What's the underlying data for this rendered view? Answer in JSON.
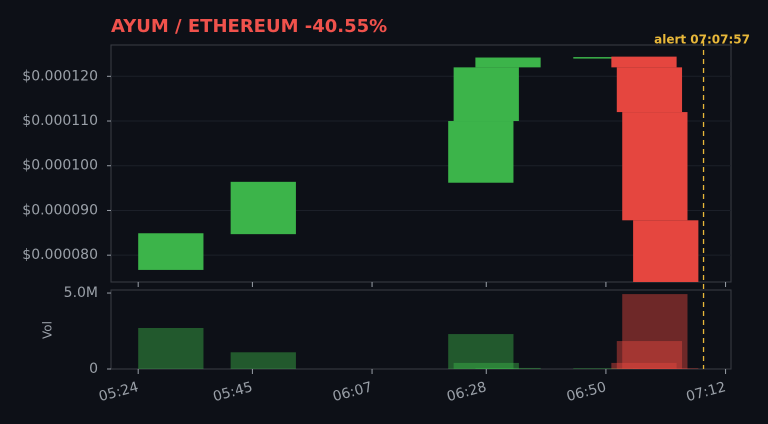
{
  "chart_data": {
    "type": "candlestick",
    "title": "AYUM / ETHEREUM  -40.55%",
    "x": [
      "05:24",
      "05:41",
      "06:21",
      "06:22",
      "06:26",
      "06:44",
      "06:51",
      "06:52",
      "06:53",
      "06:55"
    ],
    "open": [
      7.67e-05,
      8.47e-05,
      9.62e-05,
      0.00011,
      0.000122,
      0.0001241,
      0.0001244,
      0.000122,
      0.000112,
      8.78e-05
    ],
    "close": [
      8.49e-05,
      9.64e-05,
      0.00011,
      0.000122,
      0.0001242,
      0.0001243,
      0.000122,
      0.000112,
      8.78e-05,
      7.4e-05
    ],
    "volume": [
      2700000,
      1100000,
      2300000,
      400000,
      70000,
      50000,
      400000,
      1840000,
      4930000,
      50000
    ],
    "up_color": "#3cb44a",
    "down_color": "#e5463f",
    "xlim": [
      "05:19",
      "07:13"
    ],
    "xticks": [
      "05:24",
      "05:45",
      "06:07",
      "06:28",
      "06:50",
      "07:12"
    ],
    "ylim": [
      7.4e-05,
      0.000127
    ],
    "yticks": [
      {
        "value": 8e-05,
        "label": "$0.000080"
      },
      {
        "value": 9e-05,
        "label": "$0.000090"
      },
      {
        "value": 0.0001,
        "label": "$0.000100"
      },
      {
        "value": 0.00011,
        "label": "$0.000110"
      },
      {
        "value": 0.00012,
        "label": "$0.000120"
      }
    ],
    "volume_label": "Vol",
    "volume_ylim": [
      0,
      5200000
    ],
    "volume_yticks": [
      0,
      {
        "value": 5000000,
        "label": "5.0M"
      }
    ],
    "alert": {
      "x": "07:07:57",
      "label": "alert 07:07:57",
      "color": "#e8b83a"
    },
    "grid": true
  }
}
